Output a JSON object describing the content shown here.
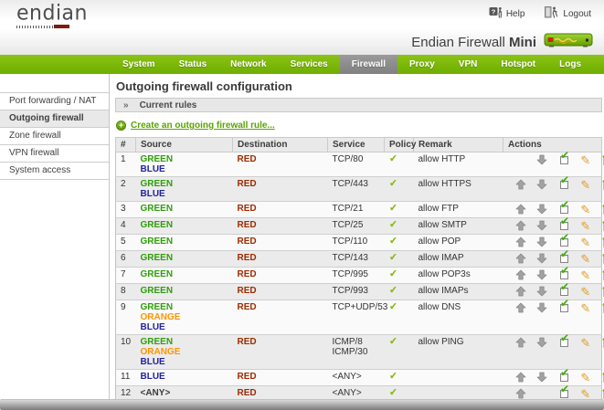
{
  "header": {
    "logo_text": "endian",
    "help_label": "Help",
    "logout_label": "Logout",
    "product_name": "Endian Firewall",
    "product_model": "Mini"
  },
  "nav": {
    "items": [
      {
        "label": "System",
        "active": false
      },
      {
        "label": "Status",
        "active": false
      },
      {
        "label": "Network",
        "active": false
      },
      {
        "label": "Services",
        "active": false
      },
      {
        "label": "Firewall",
        "active": true
      },
      {
        "label": "Proxy",
        "active": false
      },
      {
        "label": "VPN",
        "active": false
      },
      {
        "label": "Hotspot",
        "active": false
      },
      {
        "label": "Logs",
        "active": false
      }
    ]
  },
  "sidebar": {
    "items": [
      {
        "label": "Port forwarding / NAT",
        "active": false
      },
      {
        "label": "Outgoing firewall",
        "active": true
      },
      {
        "label": "Zone firewall",
        "active": false
      },
      {
        "label": "VPN firewall",
        "active": false
      },
      {
        "label": "System access",
        "active": false
      }
    ]
  },
  "main": {
    "page_title": "Outgoing firewall configuration",
    "section_header": "Current rules",
    "create_link": "Create an outgoing firewall rule..."
  },
  "table": {
    "columns": [
      "#",
      "Source",
      "Destination",
      "Service",
      "Policy",
      "Remark",
      "Actions"
    ],
    "rules": [
      {
        "num": "1",
        "source": [
          {
            "text": "GREEN",
            "color": "green"
          },
          {
            "text": "BLUE",
            "color": "blue"
          }
        ],
        "destination": [
          {
            "text": "RED",
            "color": "red"
          }
        ],
        "service": [
          "TCP/80"
        ],
        "policy": "allow",
        "remark": "allow HTTP",
        "actions": {
          "up": false,
          "down": true,
          "enabled": true,
          "edit": true,
          "delete": true
        }
      },
      {
        "num": "2",
        "source": [
          {
            "text": "GREEN",
            "color": "green"
          },
          {
            "text": "BLUE",
            "color": "blue"
          }
        ],
        "destination": [
          {
            "text": "RED",
            "color": "red"
          }
        ],
        "service": [
          "TCP/443"
        ],
        "policy": "allow",
        "remark": "allow HTTPS",
        "actions": {
          "up": true,
          "down": true,
          "enabled": true,
          "edit": true,
          "delete": true
        }
      },
      {
        "num": "3",
        "source": [
          {
            "text": "GREEN",
            "color": "green"
          }
        ],
        "destination": [
          {
            "text": "RED",
            "color": "red"
          }
        ],
        "service": [
          "TCP/21"
        ],
        "policy": "allow",
        "remark": "allow FTP",
        "actions": {
          "up": true,
          "down": true,
          "enabled": true,
          "edit": true,
          "delete": true
        }
      },
      {
        "num": "4",
        "source": [
          {
            "text": "GREEN",
            "color": "green"
          }
        ],
        "destination": [
          {
            "text": "RED",
            "color": "red"
          }
        ],
        "service": [
          "TCP/25"
        ],
        "policy": "allow",
        "remark": "allow SMTP",
        "actions": {
          "up": true,
          "down": true,
          "enabled": true,
          "edit": true,
          "delete": true
        }
      },
      {
        "num": "5",
        "source": [
          {
            "text": "GREEN",
            "color": "green"
          }
        ],
        "destination": [
          {
            "text": "RED",
            "color": "red"
          }
        ],
        "service": [
          "TCP/110"
        ],
        "policy": "allow",
        "remark": "allow POP",
        "actions": {
          "up": true,
          "down": true,
          "enabled": true,
          "edit": true,
          "delete": true
        }
      },
      {
        "num": "6",
        "source": [
          {
            "text": "GREEN",
            "color": "green"
          }
        ],
        "destination": [
          {
            "text": "RED",
            "color": "red"
          }
        ],
        "service": [
          "TCP/143"
        ],
        "policy": "allow",
        "remark": "allow IMAP",
        "actions": {
          "up": true,
          "down": true,
          "enabled": true,
          "edit": true,
          "delete": true
        }
      },
      {
        "num": "7",
        "source": [
          {
            "text": "GREEN",
            "color": "green"
          }
        ],
        "destination": [
          {
            "text": "RED",
            "color": "red"
          }
        ],
        "service": [
          "TCP/995"
        ],
        "policy": "allow",
        "remark": "allow POP3s",
        "actions": {
          "up": true,
          "down": true,
          "enabled": true,
          "edit": true,
          "delete": true
        }
      },
      {
        "num": "8",
        "source": [
          {
            "text": "GREEN",
            "color": "green"
          }
        ],
        "destination": [
          {
            "text": "RED",
            "color": "red"
          }
        ],
        "service": [
          "TCP/993"
        ],
        "policy": "allow",
        "remark": "allow IMAPs",
        "actions": {
          "up": true,
          "down": true,
          "enabled": true,
          "edit": true,
          "delete": true
        }
      },
      {
        "num": "9",
        "source": [
          {
            "text": "GREEN",
            "color": "green"
          },
          {
            "text": "ORANGE",
            "color": "orange"
          },
          {
            "text": "BLUE",
            "color": "blue"
          }
        ],
        "destination": [
          {
            "text": "RED",
            "color": "red"
          }
        ],
        "service": [
          "TCP+UDP/53"
        ],
        "policy": "allow",
        "remark": "allow DNS",
        "actions": {
          "up": true,
          "down": true,
          "enabled": true,
          "edit": true,
          "delete": true
        }
      },
      {
        "num": "10",
        "source": [
          {
            "text": "GREEN",
            "color": "green"
          },
          {
            "text": "ORANGE",
            "color": "orange"
          },
          {
            "text": "BLUE",
            "color": "blue"
          }
        ],
        "destination": [
          {
            "text": "RED",
            "color": "red"
          }
        ],
        "service": [
          "ICMP/8",
          "ICMP/30"
        ],
        "policy": "allow",
        "remark": "allow PING",
        "actions": {
          "up": true,
          "down": true,
          "enabled": true,
          "edit": true,
          "delete": true
        }
      },
      {
        "num": "11",
        "source": [
          {
            "text": "BLUE",
            "color": "blue"
          }
        ],
        "destination": [
          {
            "text": "RED",
            "color": "red"
          }
        ],
        "service": [
          "<ANY>"
        ],
        "policy": "allow",
        "remark": "",
        "actions": {
          "up": true,
          "down": true,
          "enabled": true,
          "edit": true,
          "delete": true
        }
      },
      {
        "num": "12",
        "source": [
          {
            "text": "<ANY>",
            "color": "any"
          }
        ],
        "destination": [
          {
            "text": "RED",
            "color": "red"
          }
        ],
        "service": [
          "<ANY>"
        ],
        "policy": "allow",
        "remark": "",
        "actions": {
          "up": true,
          "down": false,
          "enabled": true,
          "edit": true,
          "delete": true
        }
      }
    ]
  },
  "icons": {
    "section_marker": "»",
    "add": "+",
    "policy_allow": "✔",
    "check": "✔",
    "edit": "✎",
    "move_up": "up-arrow",
    "move_down": "down-arrow",
    "delete": "trash-can",
    "enabled": "checked-checkbox",
    "help": "question-box-person",
    "logout": "exit-door-person",
    "brand_device": "endian-mini-appliance"
  },
  "colors": {
    "green": "#2f9e0b",
    "orange": "#ff9400",
    "blue": "#23239e",
    "red": "#9e2b00",
    "any": "#3c3c3c",
    "nav": "#79b500",
    "nav_active": "#8c8c8c",
    "link": "#5aa300",
    "policy_check": "#8ab814"
  }
}
